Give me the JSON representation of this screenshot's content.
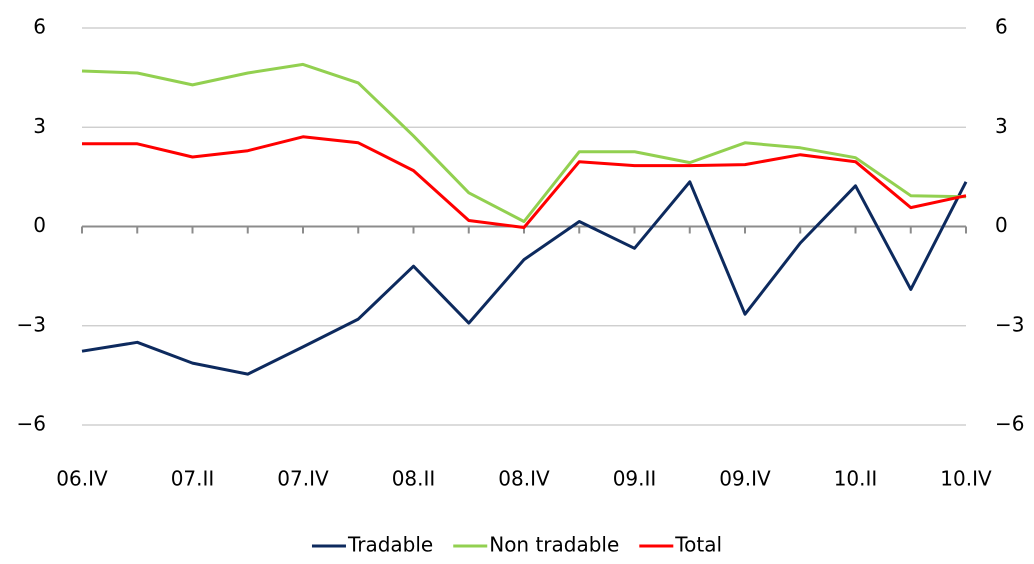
{
  "chart_data": {
    "type": "line",
    "categories": [
      "06.IV",
      null,
      "07.II",
      null,
      "07.IV",
      null,
      "08.II",
      null,
      "08.IV",
      null,
      "09.II",
      null,
      "09.IV",
      null,
      "10.II",
      null,
      "10.IV"
    ],
    "series": [
      {
        "name": "Tradable",
        "color": "#0d2a5e",
        "values": [
          -3.77,
          -3.5,
          -4.13,
          -4.46,
          -3.64,
          -2.8,
          -1.2,
          -2.92,
          -1.0,
          0.15,
          -0.66,
          1.35,
          -2.65,
          -0.5,
          1.23,
          -1.9,
          1.35
        ]
      },
      {
        "name": "Non tradable",
        "color": "#92d050",
        "values": [
          4.7,
          4.64,
          4.28,
          4.64,
          4.9,
          4.34,
          2.74,
          1.02,
          0.15,
          2.26,
          2.26,
          1.93,
          2.53,
          2.38,
          2.08,
          0.93,
          0.9
        ]
      },
      {
        "name": "Total",
        "color": "#ff0000",
        "values": [
          2.5,
          2.5,
          2.1,
          2.29,
          2.71,
          2.53,
          1.69,
          0.18,
          -0.03,
          1.96,
          1.84,
          1.84,
          1.87,
          2.17,
          1.96,
          0.57,
          0.93
        ]
      }
    ],
    "ylim": [
      -6,
      6
    ],
    "yticks": [
      {
        "value": -6,
        "label": "−6"
      },
      {
        "value": -3,
        "label": "−3"
      },
      0,
      3,
      6
    ],
    "y2lim": [
      -6,
      6
    ],
    "y2ticks": [
      {
        "value": -6,
        "label": "−6"
      },
      {
        "value": -3,
        "label": "−3"
      },
      0,
      3,
      6
    ],
    "grid": true,
    "legend": "bottom"
  }
}
